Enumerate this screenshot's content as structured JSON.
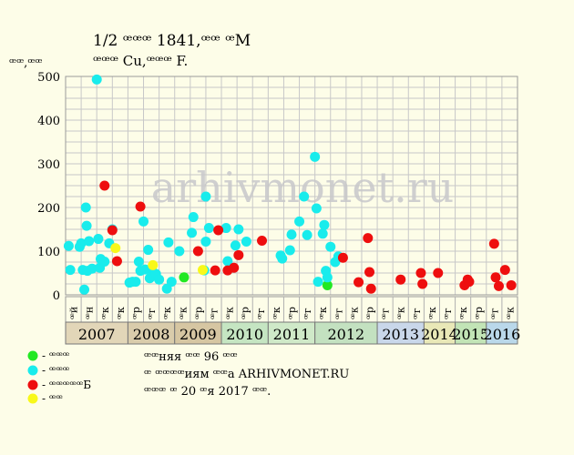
{
  "header": {
    "title": "1/2 ꟹꟹꟹ 1841,ꟹꟹ ꟹМ",
    "subtitle": "ꟹꟹꟹ Cu,ꟹꟹꟹ F.",
    "y_unit": "ꟹꟹ,ꟹꟹ"
  },
  "watermark": "arhivmonet.ru",
  "chart_data": {
    "type": "scatter",
    "ylim": [
      0,
      500
    ],
    "y_ticks": [
      0,
      100,
      200,
      300,
      400,
      500
    ],
    "grid": true,
    "n_columns": 29,
    "column_labels": [
      "ꟹй",
      "ꟹн",
      "ꟹк",
      "ꟹк",
      "ꟹр",
      "ꟹг",
      "ꟹк",
      "ꟹк",
      "ꟹр",
      "ꟹг",
      "ꟹк",
      "ꟹр",
      "ꟹг",
      "ꟹк",
      "ꟹр",
      "ꟹг",
      "ꟹк",
      "ꟹг",
      "ꟹк",
      "ꟹр",
      "ꟹг",
      "ꟹк",
      "ꟹг",
      "ꟹк",
      "ꟹг",
      "ꟹк",
      "ꟹр",
      "ꟹг",
      "ꟹк"
    ],
    "years": [
      {
        "label": "2007",
        "start": 0,
        "end": 4,
        "color": "#e2d6b8"
      },
      {
        "label": "2008",
        "start": 4,
        "end": 7,
        "color": "#d9ccab"
      },
      {
        "label": "2009",
        "start": 7,
        "end": 10,
        "color": "#d6c6a2"
      },
      {
        "label": "2010",
        "start": 10,
        "end": 13,
        "color": "#c5e5c2"
      },
      {
        "label": "2011",
        "start": 13,
        "end": 16,
        "color": "#cfe9c8"
      },
      {
        "label": "2012",
        "start": 16,
        "end": 20,
        "color": "#c3e1c0"
      },
      {
        "label": "2013",
        "start": 20,
        "end": 23,
        "color": "#c9d7ea"
      },
      {
        "label": "2014",
        "start": 23,
        "end": 25,
        "color": "#e9e8b7"
      },
      {
        "label": "2015",
        "start": 25,
        "end": 27,
        "color": "#c2e4b6"
      },
      {
        "label": "2016",
        "start": 27,
        "end": 29,
        "color": "#bad8ea"
      }
    ],
    "series": [
      {
        "name": "- ꟹꟹꟹ",
        "color": "#22e822",
        "points": [
          [
            7.6,
            40
          ],
          [
            16.8,
            22
          ]
        ]
      },
      {
        "name": "- ꟹꟹꟹ",
        "color": "#19ecec",
        "points": [
          [
            0.2,
            112
          ],
          [
            0.3,
            57
          ],
          [
            0.9,
            110
          ],
          [
            1.0,
            118
          ],
          [
            1.1,
            57
          ],
          [
            1.2,
            12
          ],
          [
            1.3,
            200
          ],
          [
            1.35,
            158
          ],
          [
            1.4,
            55
          ],
          [
            1.5,
            123
          ],
          [
            1.7,
            60
          ],
          [
            2.0,
            493
          ],
          [
            2.1,
            128
          ],
          [
            2.2,
            62
          ],
          [
            2.25,
            82
          ],
          [
            2.5,
            76
          ],
          [
            2.8,
            118
          ],
          [
            3.0,
            150
          ],
          [
            4.1,
            28
          ],
          [
            4.3,
            30
          ],
          [
            4.5,
            30
          ],
          [
            4.7,
            76
          ],
          [
            4.8,
            55
          ],
          [
            5.0,
            168
          ],
          [
            5.1,
            58
          ],
          [
            5.3,
            103
          ],
          [
            5.4,
            38
          ],
          [
            5.6,
            52
          ],
          [
            5.8,
            48
          ],
          [
            6.0,
            35
          ],
          [
            6.5,
            14
          ],
          [
            6.6,
            120
          ],
          [
            6.8,
            30
          ],
          [
            7.3,
            100
          ],
          [
            8.1,
            142
          ],
          [
            8.2,
            178
          ],
          [
            8.9,
            56
          ],
          [
            9.0,
            225
          ],
          [
            9.0,
            122
          ],
          [
            9.2,
            153
          ],
          [
            10.3,
            153
          ],
          [
            10.4,
            77
          ],
          [
            10.9,
            113
          ],
          [
            11.1,
            150
          ],
          [
            11.6,
            122
          ],
          [
            13.8,
            90
          ],
          [
            13.9,
            83
          ],
          [
            14.4,
            102
          ],
          [
            14.5,
            138
          ],
          [
            15.0,
            168
          ],
          [
            15.3,
            225
          ],
          [
            15.5,
            137
          ],
          [
            16.0,
            316
          ],
          [
            16.1,
            198
          ],
          [
            16.2,
            30
          ],
          [
            16.5,
            140
          ],
          [
            16.6,
            160
          ],
          [
            16.7,
            55
          ],
          [
            16.8,
            40
          ],
          [
            17.0,
            110
          ],
          [
            17.3,
            75
          ],
          [
            17.5,
            88
          ]
        ]
      },
      {
        "name": "- ꟹꟹꟹꟹꟹБ",
        "color": "#ee0e0e",
        "points": [
          [
            2.5,
            250
          ],
          [
            3.0,
            148
          ],
          [
            3.3,
            77
          ],
          [
            4.8,
            202
          ],
          [
            8.5,
            100
          ],
          [
            9.6,
            56
          ],
          [
            9.8,
            148
          ],
          [
            10.4,
            56
          ],
          [
            10.8,
            62
          ],
          [
            11.1,
            91
          ],
          [
            12.6,
            124
          ],
          [
            17.8,
            85
          ],
          [
            18.8,
            29
          ],
          [
            19.4,
            130
          ],
          [
            19.5,
            52
          ],
          [
            19.6,
            14
          ],
          [
            21.5,
            35
          ],
          [
            22.8,
            50
          ],
          [
            22.9,
            25
          ],
          [
            23.9,
            50
          ],
          [
            25.6,
            22
          ],
          [
            25.8,
            35
          ],
          [
            25.9,
            30
          ],
          [
            27.5,
            117
          ],
          [
            27.6,
            40
          ],
          [
            27.8,
            20
          ],
          [
            28.2,
            57
          ],
          [
            28.6,
            22
          ]
        ]
      },
      {
        "name": "- ꟹꟹ",
        "color": "#f8f81a",
        "points": [
          [
            3.2,
            107
          ],
          [
            5.6,
            68
          ],
          [
            8.8,
            57
          ]
        ]
      }
    ]
  },
  "notes": {
    "line1": "ꟹꟹняя ꟹꟹ 96 ꟹꟹ",
    "line2": "ꟹ ꟹꟹꟹꟹиям ꟹꟹа ARHIVMONET.RU",
    "line3": "ꟹꟹꟹ ꟹ 20 ꟹя 2017 ꟹꟹ."
  }
}
